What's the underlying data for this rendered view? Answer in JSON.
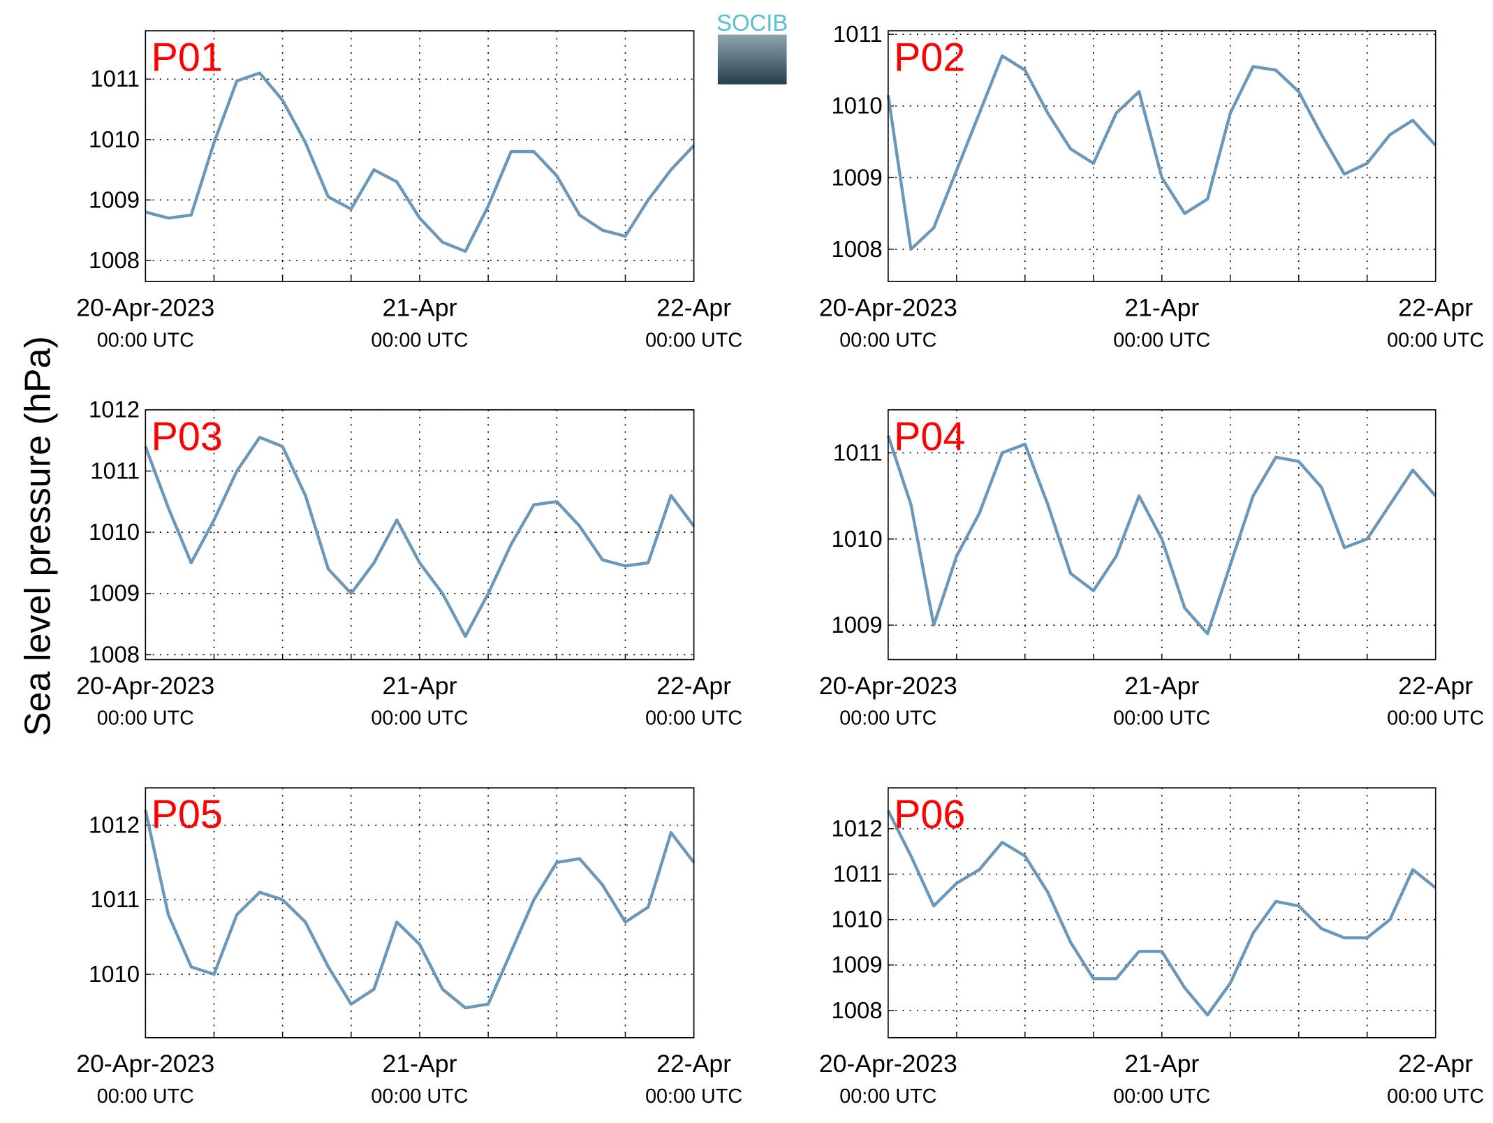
{
  "ylabel": "Sea level pressure (hPa)",
  "logo": "SOCIB",
  "chart_data": [
    {
      "type": "line",
      "title": "P01",
      "color": "#6b97b9",
      "grid": true,
      "x": [
        "2023-04-20T00:00Z",
        "2023-04-20T02:00Z",
        "2023-04-20T04:00Z",
        "2023-04-20T06:00Z",
        "2023-04-20T08:00Z",
        "2023-04-20T10:00Z",
        "2023-04-20T12:00Z",
        "2023-04-20T14:00Z",
        "2023-04-20T16:00Z",
        "2023-04-20T18:00Z",
        "2023-04-20T20:00Z",
        "2023-04-20T22:00Z",
        "2023-04-21T00:00Z",
        "2023-04-21T02:00Z",
        "2023-04-21T04:00Z",
        "2023-04-21T06:00Z",
        "2023-04-21T08:00Z",
        "2023-04-21T10:00Z",
        "2023-04-21T12:00Z",
        "2023-04-21T14:00Z",
        "2023-04-21T16:00Z",
        "2023-04-21T18:00Z",
        "2023-04-21T20:00Z",
        "2023-04-21T22:00Z",
        "2023-04-22T00:00Z"
      ],
      "values": [
        1008.8,
        1008.7,
        1008.75,
        1009.95,
        1010.97,
        1011.1,
        1010.65,
        1009.95,
        1009.05,
        1008.85,
        1009.5,
        1009.3,
        1008.7,
        1008.3,
        1008.15,
        1008.9,
        1009.8,
        1009.8,
        1009.4,
        1008.75,
        1008.5,
        1008.4,
        1009.0,
        1009.5,
        1009.9
      ],
      "xlim": [
        "2023-04-20T00:00Z",
        "2023-04-22T00:00Z"
      ],
      "xticks": [
        {
          "value": "2023-04-20T00:00Z",
          "label": "20-Apr-2023",
          "sublabel": "00:00 UTC"
        },
        "2023-04-20T06:00Z",
        "2023-04-20T12:00Z",
        "2023-04-20T18:00Z",
        {
          "value": "2023-04-21T00:00Z",
          "label": "21-Apr",
          "sublabel": "00:00 UTC"
        },
        "2023-04-21T06:00Z",
        "2023-04-21T12:00Z",
        "2023-04-21T18:00Z",
        {
          "value": "2023-04-22T00:00Z",
          "label": "22-Apr",
          "sublabel": "00:00 UTC"
        }
      ],
      "ylim": [
        1007.65,
        1011.8
      ],
      "yticks": [
        1008,
        1009,
        1010,
        1011
      ]
    },
    {
      "type": "line",
      "title": "P02",
      "color": "#6b97b9",
      "grid": true,
      "x": [
        "2023-04-20T00:00Z",
        "2023-04-20T02:00Z",
        "2023-04-20T04:00Z",
        "2023-04-20T06:00Z",
        "2023-04-20T08:00Z",
        "2023-04-20T10:00Z",
        "2023-04-20T12:00Z",
        "2023-04-20T14:00Z",
        "2023-04-20T16:00Z",
        "2023-04-20T18:00Z",
        "2023-04-20T20:00Z",
        "2023-04-20T22:00Z",
        "2023-04-21T00:00Z",
        "2023-04-21T02:00Z",
        "2023-04-21T04:00Z",
        "2023-04-21T06:00Z",
        "2023-04-21T08:00Z",
        "2023-04-21T10:00Z",
        "2023-04-21T12:00Z",
        "2023-04-21T14:00Z",
        "2023-04-21T16:00Z",
        "2023-04-21T18:00Z",
        "2023-04-21T20:00Z",
        "2023-04-21T22:00Z",
        "2023-04-22T00:00Z"
      ],
      "values": [
        1010.15,
        1008.0,
        1008.3,
        1009.1,
        1009.9,
        1010.7,
        1010.5,
        1009.9,
        1009.4,
        1009.2,
        1009.9,
        1010.2,
        1009.0,
        1008.5,
        1008.7,
        1009.9,
        1010.55,
        1010.5,
        1010.2,
        1009.6,
        1009.05,
        1009.2,
        1009.6,
        1009.8,
        1009.45
      ],
      "xlim": [
        "2023-04-20T00:00Z",
        "2023-04-22T00:00Z"
      ],
      "xticks": [
        {
          "value": "2023-04-20T00:00Z",
          "label": "20-Apr-2023",
          "sublabel": "00:00 UTC"
        },
        "2023-04-20T06:00Z",
        "2023-04-20T12:00Z",
        "2023-04-20T18:00Z",
        {
          "value": "2023-04-21T00:00Z",
          "label": "21-Apr",
          "sublabel": "00:00 UTC"
        },
        "2023-04-21T06:00Z",
        "2023-04-21T12:00Z",
        "2023-04-21T18:00Z",
        {
          "value": "2023-04-22T00:00Z",
          "label": "22-Apr",
          "sublabel": "00:00 UTC"
        }
      ],
      "ylim": [
        1007.55,
        1011.05
      ],
      "yticks": [
        1008,
        1009,
        1010,
        1011
      ]
    },
    {
      "type": "line",
      "title": "P03",
      "color": "#6b97b9",
      "grid": true,
      "x": [
        "2023-04-20T00:00Z",
        "2023-04-20T02:00Z",
        "2023-04-20T04:00Z",
        "2023-04-20T06:00Z",
        "2023-04-20T08:00Z",
        "2023-04-20T10:00Z",
        "2023-04-20T12:00Z",
        "2023-04-20T14:00Z",
        "2023-04-20T16:00Z",
        "2023-04-20T18:00Z",
        "2023-04-20T20:00Z",
        "2023-04-20T22:00Z",
        "2023-04-21T00:00Z",
        "2023-04-21T02:00Z",
        "2023-04-21T04:00Z",
        "2023-04-21T06:00Z",
        "2023-04-21T08:00Z",
        "2023-04-21T10:00Z",
        "2023-04-21T12:00Z",
        "2023-04-21T14:00Z",
        "2023-04-21T16:00Z",
        "2023-04-21T18:00Z",
        "2023-04-21T20:00Z",
        "2023-04-21T22:00Z",
        "2023-04-22T00:00Z"
      ],
      "values": [
        1011.4,
        1010.4,
        1009.5,
        1010.2,
        1011.0,
        1011.55,
        1011.4,
        1010.6,
        1009.4,
        1009.0,
        1009.5,
        1010.2,
        1009.5,
        1009.0,
        1008.3,
        1009.0,
        1009.8,
        1010.45,
        1010.5,
        1010.1,
        1009.55,
        1009.45,
        1009.5,
        1010.6,
        1010.1
      ],
      "xlim": [
        "2023-04-20T00:00Z",
        "2023-04-22T00:00Z"
      ],
      "xticks": [
        {
          "value": "2023-04-20T00:00Z",
          "label": "20-Apr-2023",
          "sublabel": "00:00 UTC"
        },
        "2023-04-20T06:00Z",
        "2023-04-20T12:00Z",
        "2023-04-20T18:00Z",
        {
          "value": "2023-04-21T00:00Z",
          "label": "21-Apr",
          "sublabel": "00:00 UTC"
        },
        "2023-04-21T06:00Z",
        "2023-04-21T12:00Z",
        "2023-04-21T18:00Z",
        {
          "value": "2023-04-22T00:00Z",
          "label": "22-Apr",
          "sublabel": "00:00 UTC"
        }
      ],
      "ylim": [
        1007.92,
        1012
      ],
      "yticks": [
        1008,
        1009,
        1010,
        1011,
        1012
      ]
    },
    {
      "type": "line",
      "title": "P04",
      "color": "#6b97b9",
      "grid": true,
      "x": [
        "2023-04-20T00:00Z",
        "2023-04-20T02:00Z",
        "2023-04-20T04:00Z",
        "2023-04-20T06:00Z",
        "2023-04-20T08:00Z",
        "2023-04-20T10:00Z",
        "2023-04-20T12:00Z",
        "2023-04-20T14:00Z",
        "2023-04-20T16:00Z",
        "2023-04-20T18:00Z",
        "2023-04-20T20:00Z",
        "2023-04-20T22:00Z",
        "2023-04-21T00:00Z",
        "2023-04-21T02:00Z",
        "2023-04-21T04:00Z",
        "2023-04-21T06:00Z",
        "2023-04-21T08:00Z",
        "2023-04-21T10:00Z",
        "2023-04-21T12:00Z",
        "2023-04-21T14:00Z",
        "2023-04-21T16:00Z",
        "2023-04-21T18:00Z",
        "2023-04-21T20:00Z",
        "2023-04-21T22:00Z",
        "2023-04-22T00:00Z"
      ],
      "values": [
        1011.2,
        1010.4,
        1009.0,
        1009.8,
        1010.3,
        1011.0,
        1011.1,
        1010.4,
        1009.6,
        1009.4,
        1009.8,
        1010.5,
        1010.0,
        1009.2,
        1008.9,
        1009.7,
        1010.5,
        1010.95,
        1010.9,
        1010.6,
        1009.9,
        1010.0,
        1010.4,
        1010.8,
        1010.5
      ],
      "xlim": [
        "2023-04-20T00:00Z",
        "2023-04-22T00:00Z"
      ],
      "xticks": [
        {
          "value": "2023-04-20T00:00Z",
          "label": "20-Apr-2023",
          "sublabel": "00:00 UTC"
        },
        "2023-04-20T06:00Z",
        "2023-04-20T12:00Z",
        "2023-04-20T18:00Z",
        {
          "value": "2023-04-21T00:00Z",
          "label": "21-Apr",
          "sublabel": "00:00 UTC"
        },
        "2023-04-21T06:00Z",
        "2023-04-21T12:00Z",
        "2023-04-21T18:00Z",
        {
          "value": "2023-04-22T00:00Z",
          "label": "22-Apr",
          "sublabel": "00:00 UTC"
        }
      ],
      "ylim": [
        1008.6,
        1011.5
      ],
      "yticks": [
        1009,
        1010,
        1011
      ]
    },
    {
      "type": "line",
      "title": "P05",
      "color": "#6b97b9",
      "grid": true,
      "x": [
        "2023-04-20T00:00Z",
        "2023-04-20T02:00Z",
        "2023-04-20T04:00Z",
        "2023-04-20T06:00Z",
        "2023-04-20T08:00Z",
        "2023-04-20T10:00Z",
        "2023-04-20T12:00Z",
        "2023-04-20T14:00Z",
        "2023-04-20T16:00Z",
        "2023-04-20T18:00Z",
        "2023-04-20T20:00Z",
        "2023-04-20T22:00Z",
        "2023-04-21T00:00Z",
        "2023-04-21T02:00Z",
        "2023-04-21T04:00Z",
        "2023-04-21T06:00Z",
        "2023-04-21T08:00Z",
        "2023-04-21T10:00Z",
        "2023-04-21T12:00Z",
        "2023-04-21T14:00Z",
        "2023-04-21T16:00Z",
        "2023-04-21T18:00Z",
        "2023-04-21T20:00Z",
        "2023-04-21T22:00Z",
        "2023-04-22T00:00Z"
      ],
      "values": [
        1012.2,
        1010.8,
        1010.1,
        1010.0,
        1010.8,
        1011.1,
        1011.0,
        1010.7,
        1010.1,
        1009.6,
        1009.8,
        1010.7,
        1010.4,
        1009.8,
        1009.55,
        1009.6,
        1010.3,
        1011.0,
        1011.5,
        1011.55,
        1011.2,
        1010.7,
        1010.9,
        1011.9,
        1011.5
      ],
      "xlim": [
        "2023-04-20T00:00Z",
        "2023-04-22T00:00Z"
      ],
      "xticks": [
        {
          "value": "2023-04-20T00:00Z",
          "label": "20-Apr-2023",
          "sublabel": "00:00 UTC"
        },
        "2023-04-20T06:00Z",
        "2023-04-20T12:00Z",
        "2023-04-20T18:00Z",
        {
          "value": "2023-04-21T00:00Z",
          "label": "21-Apr",
          "sublabel": "00:00 UTC"
        },
        "2023-04-21T06:00Z",
        "2023-04-21T12:00Z",
        "2023-04-21T18:00Z",
        {
          "value": "2023-04-22T00:00Z",
          "label": "22-Apr",
          "sublabel": "00:00 UTC"
        }
      ],
      "ylim": [
        1009.15,
        1012.5
      ],
      "yticks": [
        1010,
        1011,
        1012
      ]
    },
    {
      "type": "line",
      "title": "P06",
      "color": "#6b97b9",
      "grid": true,
      "x": [
        "2023-04-20T00:00Z",
        "2023-04-20T02:00Z",
        "2023-04-20T04:00Z",
        "2023-04-20T06:00Z",
        "2023-04-20T08:00Z",
        "2023-04-20T10:00Z",
        "2023-04-20T12:00Z",
        "2023-04-20T14:00Z",
        "2023-04-20T16:00Z",
        "2023-04-20T18:00Z",
        "2023-04-20T20:00Z",
        "2023-04-20T22:00Z",
        "2023-04-21T00:00Z",
        "2023-04-21T02:00Z",
        "2023-04-21T04:00Z",
        "2023-04-21T06:00Z",
        "2023-04-21T08:00Z",
        "2023-04-21T10:00Z",
        "2023-04-21T12:00Z",
        "2023-04-21T14:00Z",
        "2023-04-21T16:00Z",
        "2023-04-21T18:00Z",
        "2023-04-21T20:00Z",
        "2023-04-21T22:00Z",
        "2023-04-22T00:00Z"
      ],
      "values": [
        1012.4,
        1011.4,
        1010.3,
        1010.8,
        1011.1,
        1011.7,
        1011.4,
        1010.6,
        1009.5,
        1008.7,
        1008.7,
        1009.3,
        1009.3,
        1008.5,
        1007.9,
        1008.6,
        1009.7,
        1010.4,
        1010.3,
        1009.8,
        1009.6,
        1009.6,
        1010.0,
        1011.1,
        1010.7
      ],
      "xlim": [
        "2023-04-20T00:00Z",
        "2023-04-22T00:00Z"
      ],
      "xticks": [
        {
          "value": "2023-04-20T00:00Z",
          "label": "20-Apr-2023",
          "sublabel": "00:00 UTC"
        },
        "2023-04-20T06:00Z",
        "2023-04-20T12:00Z",
        "2023-04-20T18:00Z",
        {
          "value": "2023-04-21T00:00Z",
          "label": "21-Apr",
          "sublabel": "00:00 UTC"
        },
        "2023-04-21T06:00Z",
        "2023-04-21T12:00Z",
        "2023-04-21T18:00Z",
        {
          "value": "2023-04-22T00:00Z",
          "label": "22-Apr",
          "sublabel": "00:00 UTC"
        }
      ],
      "ylim": [
        1007.4,
        1012.9
      ],
      "yticks": [
        1008,
        1009,
        1010,
        1011,
        1012
      ]
    }
  ]
}
